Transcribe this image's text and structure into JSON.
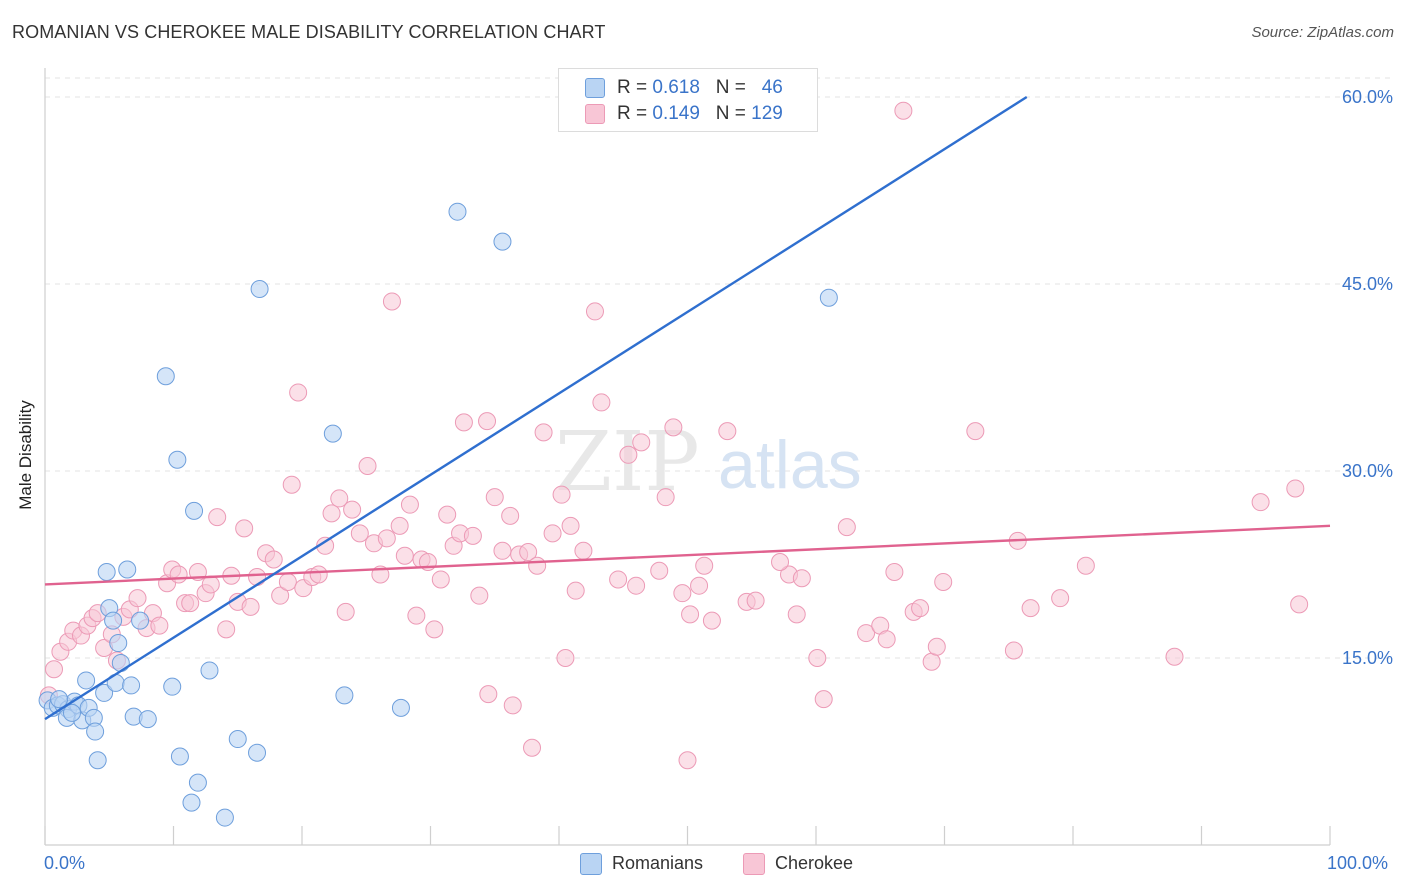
{
  "title": "ROMANIAN VS CHEROKEE MALE DISABILITY CORRELATION CHART",
  "source": "Source: ZipAtlas.com",
  "watermark_zip": "ZIP",
  "watermark_atlas": "atlas",
  "legend": {
    "row1": {
      "r_label": "R = ",
      "r_value": "0.618",
      "n_label": "N = ",
      "n_value": "46"
    },
    "row2": {
      "r_label": "R = ",
      "r_value": "0.149",
      "n_label": "N = ",
      "n_value": "129"
    }
  },
  "colors": {
    "romanians_fill": "#b9d4f3",
    "romanians_stroke": "#6e9fdc",
    "romanians_line": "#2f6fcf",
    "cherokee_fill": "#f8c6d6",
    "cherokee_stroke": "#ec9ab6",
    "cherokee_line": "#e0628f",
    "tick_label": "#3a74c9",
    "grid": "#e3e3e3"
  },
  "chart_data": {
    "type": "scatter",
    "xlabel": "",
    "ylabel": "Male Disability",
    "xlim": [
      0,
      100
    ],
    "ylim": [
      0,
      60
    ],
    "x_tick_labels": [
      "0.0%",
      "100.0%"
    ],
    "y_ticks": [
      15,
      30,
      45,
      60
    ],
    "y_tick_labels": [
      "15.0%",
      "30.0%",
      "45.0%",
      "60.0%"
    ],
    "grid": true,
    "legend_position": "bottom",
    "series": [
      {
        "name": "Romanians",
        "r": 0.618,
        "n": 46,
        "trend": {
          "x": [
            0,
            76.4
          ],
          "y": [
            10.1,
            60
          ]
        },
        "points": [
          [
            0.2,
            11.6
          ],
          [
            0.6,
            11.0
          ],
          [
            1.0,
            11.2
          ],
          [
            1.4,
            11.3
          ],
          [
            1.8,
            10.9
          ],
          [
            1.7,
            10.2
          ],
          [
            2.3,
            11.5
          ],
          [
            2.6,
            11.2
          ],
          [
            2.9,
            10.0
          ],
          [
            3.2,
            13.2
          ],
          [
            3.4,
            11.0
          ],
          [
            3.8,
            10.2
          ],
          [
            3.9,
            9.1
          ],
          [
            4.1,
            6.8
          ],
          [
            4.6,
            12.2
          ],
          [
            4.8,
            21.9
          ],
          [
            5.0,
            19.0
          ],
          [
            5.3,
            18.0
          ],
          [
            5.5,
            13.0
          ],
          [
            5.7,
            16.2
          ],
          [
            5.9,
            14.6
          ],
          [
            6.4,
            22.1
          ],
          [
            6.7,
            12.8
          ],
          [
            6.9,
            10.3
          ],
          [
            7.4,
            18.0
          ],
          [
            8.0,
            10.1
          ],
          [
            9.4,
            37.6
          ],
          [
            9.9,
            12.7
          ],
          [
            10.3,
            30.9
          ],
          [
            10.5,
            7.1
          ],
          [
            11.4,
            3.4
          ],
          [
            11.9,
            5.0
          ],
          [
            11.6,
            26.8
          ],
          [
            12.8,
            14.0
          ],
          [
            14.0,
            2.2
          ],
          [
            15.0,
            8.5
          ],
          [
            16.5,
            7.4
          ],
          [
            16.7,
            44.6
          ],
          [
            22.4,
            33.0
          ],
          [
            23.3,
            12.0
          ],
          [
            27.7,
            11.0
          ],
          [
            32.1,
            50.8
          ],
          [
            35.6,
            48.4
          ],
          [
            61.0,
            43.9
          ],
          [
            1.1,
            11.7
          ],
          [
            2.1,
            10.6
          ]
        ]
      },
      {
        "name": "Cherokee",
        "r": 0.149,
        "n": 129,
        "trend": {
          "x": [
            0,
            100
          ],
          "y": [
            20.9,
            25.6
          ]
        },
        "points": [
          [
            0.3,
            12.0
          ],
          [
            0.7,
            14.1
          ],
          [
            1.2,
            15.5
          ],
          [
            1.8,
            16.3
          ],
          [
            2.2,
            17.2
          ],
          [
            2.8,
            16.8
          ],
          [
            3.3,
            17.6
          ],
          [
            3.7,
            18.2
          ],
          [
            4.1,
            18.6
          ],
          [
            4.6,
            15.8
          ],
          [
            5.2,
            16.9
          ],
          [
            5.6,
            14.8
          ],
          [
            6.1,
            18.3
          ],
          [
            6.6,
            18.9
          ],
          [
            7.2,
            19.8
          ],
          [
            7.9,
            17.4
          ],
          [
            8.4,
            18.6
          ],
          [
            8.9,
            17.6
          ],
          [
            9.5,
            21.0
          ],
          [
            9.9,
            22.1
          ],
          [
            10.4,
            21.7
          ],
          [
            10.9,
            19.4
          ],
          [
            11.3,
            19.4
          ],
          [
            11.9,
            21.9
          ],
          [
            12.5,
            20.2
          ],
          [
            12.9,
            20.9
          ],
          [
            13.4,
            26.3
          ],
          [
            14.1,
            17.3
          ],
          [
            14.5,
            21.6
          ],
          [
            15.0,
            19.5
          ],
          [
            15.5,
            25.4
          ],
          [
            16.0,
            19.1
          ],
          [
            16.5,
            21.5
          ],
          [
            17.2,
            23.4
          ],
          [
            17.8,
            22.9
          ],
          [
            18.3,
            20.0
          ],
          [
            18.9,
            21.1
          ],
          [
            19.2,
            28.9
          ],
          [
            19.7,
            36.3
          ],
          [
            20.1,
            20.6
          ],
          [
            20.8,
            21.5
          ],
          [
            21.3,
            21.7
          ],
          [
            21.8,
            24.0
          ],
          [
            22.3,
            26.6
          ],
          [
            22.9,
            27.8
          ],
          [
            23.4,
            18.7
          ],
          [
            23.9,
            26.9
          ],
          [
            24.5,
            25.0
          ],
          [
            25.1,
            30.4
          ],
          [
            25.6,
            24.2
          ],
          [
            26.1,
            21.7
          ],
          [
            26.6,
            24.6
          ],
          [
            27.0,
            43.6
          ],
          [
            27.6,
            25.6
          ],
          [
            28.0,
            23.2
          ],
          [
            28.4,
            27.3
          ],
          [
            28.9,
            18.4
          ],
          [
            29.3,
            22.9
          ],
          [
            29.8,
            22.7
          ],
          [
            30.3,
            17.3
          ],
          [
            30.8,
            21.3
          ],
          [
            31.3,
            26.5
          ],
          [
            31.8,
            24.0
          ],
          [
            32.3,
            25.0
          ],
          [
            32.6,
            33.9
          ],
          [
            33.3,
            24.8
          ],
          [
            33.8,
            20.0
          ],
          [
            34.4,
            34.0
          ],
          [
            35.0,
            27.9
          ],
          [
            35.6,
            23.6
          ],
          [
            36.2,
            26.4
          ],
          [
            36.9,
            23.3
          ],
          [
            37.6,
            23.5
          ],
          [
            38.3,
            22.4
          ],
          [
            38.8,
            33.1
          ],
          [
            39.5,
            25.0
          ],
          [
            40.2,
            28.1
          ],
          [
            40.9,
            25.6
          ],
          [
            41.3,
            20.4
          ],
          [
            41.9,
            23.6
          ],
          [
            42.8,
            42.8
          ],
          [
            43.3,
            35.5
          ],
          [
            44.6,
            21.3
          ],
          [
            45.4,
            31.3
          ],
          [
            46.0,
            20.8
          ],
          [
            46.4,
            32.3
          ],
          [
            47.8,
            22.0
          ],
          [
            48.3,
            27.9
          ],
          [
            48.9,
            33.5
          ],
          [
            49.6,
            20.2
          ],
          [
            50.2,
            18.5
          ],
          [
            50.9,
            20.8
          ],
          [
            51.3,
            22.4
          ],
          [
            51.9,
            18.0
          ],
          [
            53.1,
            33.2
          ],
          [
            54.6,
            19.5
          ],
          [
            55.3,
            19.6
          ],
          [
            57.9,
            21.7
          ],
          [
            58.5,
            18.5
          ],
          [
            58.9,
            21.4
          ],
          [
            60.1,
            15.0
          ],
          [
            60.6,
            11.7
          ],
          [
            62.4,
            25.5
          ],
          [
            63.9,
            17.0
          ],
          [
            65.0,
            17.6
          ],
          [
            65.5,
            16.5
          ],
          [
            66.1,
            21.9
          ],
          [
            67.6,
            18.7
          ],
          [
            68.1,
            19.0
          ],
          [
            69.0,
            14.7
          ],
          [
            69.4,
            15.9
          ],
          [
            69.9,
            21.1
          ],
          [
            72.4,
            33.2
          ],
          [
            75.4,
            15.6
          ],
          [
            75.7,
            24.4
          ],
          [
            76.7,
            19.0
          ],
          [
            79.0,
            19.8
          ],
          [
            81.0,
            22.4
          ],
          [
            87.9,
            15.1
          ],
          [
            94.6,
            27.5
          ],
          [
            97.3,
            28.6
          ],
          [
            97.6,
            19.3
          ],
          [
            66.8,
            58.9
          ],
          [
            34.5,
            12.1
          ],
          [
            36.4,
            11.2
          ],
          [
            37.9,
            7.8
          ],
          [
            50.0,
            6.8
          ],
          [
            40.5,
            15.0
          ],
          [
            57.2,
            22.7
          ]
        ]
      }
    ]
  },
  "bottom_legend": {
    "item1": "Romanians",
    "item2": "Cherokee"
  }
}
